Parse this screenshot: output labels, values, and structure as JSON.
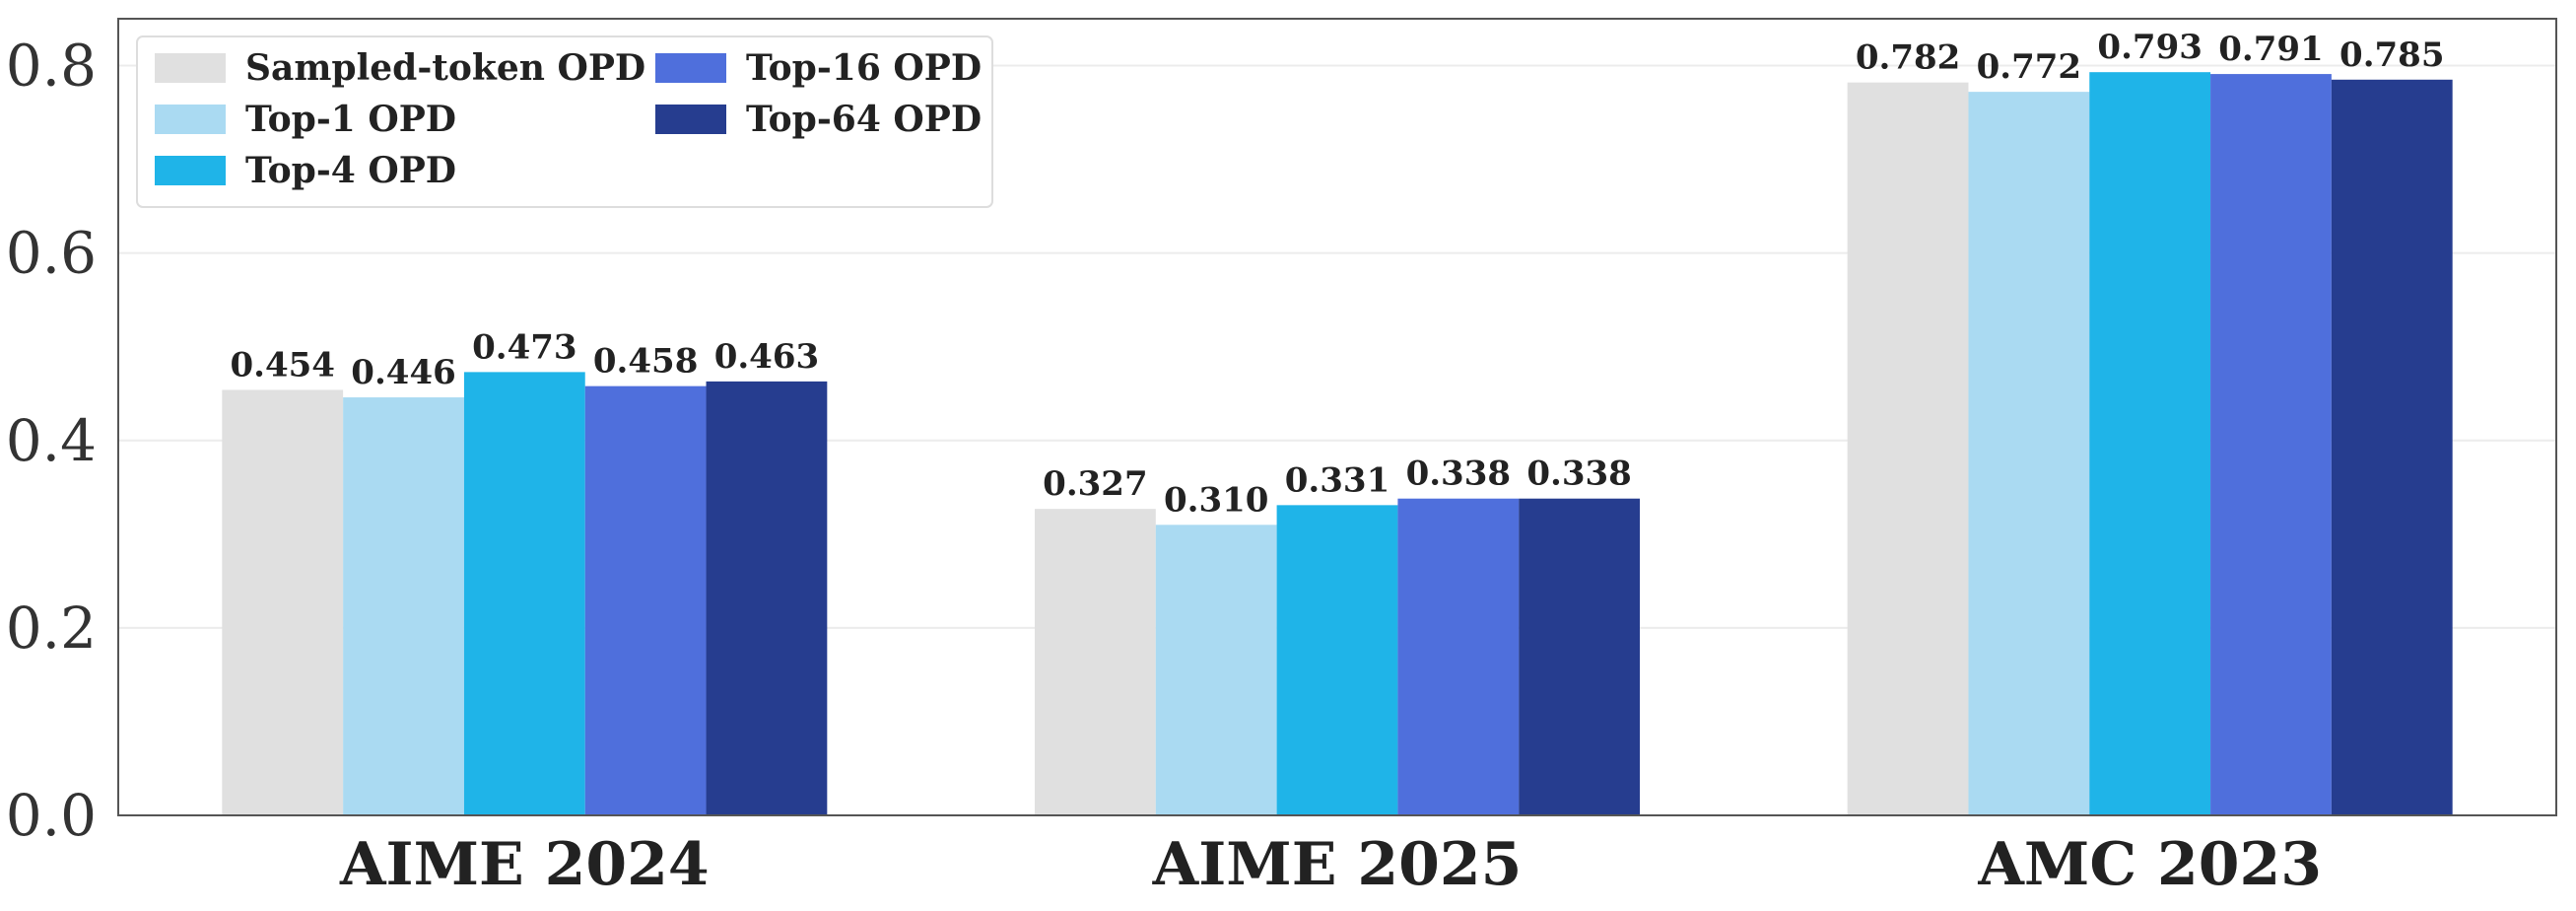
{
  "chart_data": {
    "type": "bar",
    "categories": [
      "AIME 2024",
      "AIME 2025",
      "AMC 2023"
    ],
    "series": [
      {
        "name": "Sampled-token OPD",
        "color": "#e0e0e0",
        "values": [
          0.454,
          0.327,
          0.782
        ],
        "labels": [
          "0.454",
          "0.327",
          "0.782"
        ]
      },
      {
        "name": "Top-1 OPD",
        "color": "#aadaf2",
        "values": [
          0.446,
          0.31,
          0.772
        ],
        "labels": [
          "0.446",
          "0.310",
          "0.772"
        ]
      },
      {
        "name": "Top-4 OPD",
        "color": "#1fb4e8",
        "values": [
          0.473,
          0.331,
          0.793
        ],
        "labels": [
          "0.473",
          "0.331",
          "0.793"
        ]
      },
      {
        "name": "Top-16 OPD",
        "color": "#4f6fdc",
        "values": [
          0.458,
          0.338,
          0.791
        ],
        "labels": [
          "0.458",
          "0.338",
          "0.791"
        ]
      },
      {
        "name": "Top-64 OPD",
        "color": "#263d8f",
        "values": [
          0.463,
          0.338,
          0.785
        ],
        "labels": [
          "0.463",
          "0.338",
          "0.785"
        ]
      }
    ],
    "yticks": [
      0.0,
      0.2,
      0.4,
      0.6,
      0.8
    ],
    "ytick_labels": [
      "0.0",
      "0.2",
      "0.4",
      "0.6",
      "0.8"
    ],
    "ylim": [
      0,
      0.85
    ],
    "grid": true,
    "legend_position": "top-left",
    "title": "",
    "xlabel": "",
    "ylabel": ""
  }
}
